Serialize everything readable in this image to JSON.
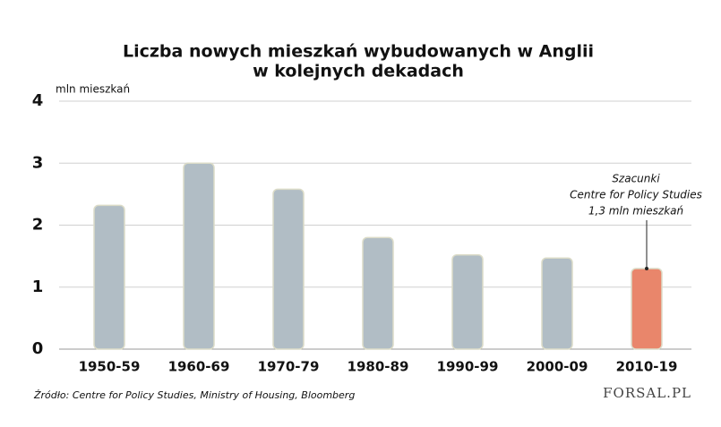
{
  "chart_data": {
    "type": "bar",
    "title": [
      "Liczba nowych mieszkań wybudowanych w Anglii",
      "w kolejnych dekadach"
    ],
    "y_label": "mln mieszkań",
    "categories": [
      "1950-59",
      "1960-69",
      "1970-79",
      "1980-89",
      "1990-99",
      "2000-09",
      "2010-19"
    ],
    "values": [
      2.32,
      3.0,
      2.58,
      1.8,
      1.52,
      1.47,
      1.3
    ],
    "colors": [
      "#b1bdc5",
      "#b1bdc5",
      "#b1bdc5",
      "#b1bdc5",
      "#b1bdc5",
      "#b1bdc5",
      "#e9866b"
    ],
    "ylim": [
      0,
      4
    ],
    "yticks": [
      0,
      1,
      2,
      3,
      4
    ],
    "grid": true,
    "annotation": [
      "Szacunki",
      "Centre for Policy Studies",
      "1,3 mln mieszkań"
    ],
    "source": "Źródło: Centre for Policy Studies, Ministry of Housing, Bloomberg",
    "logo": "FORSAL.PL"
  }
}
